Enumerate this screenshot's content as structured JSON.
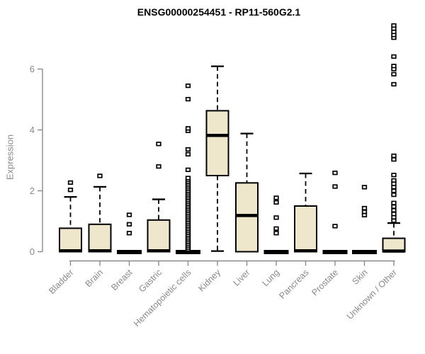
{
  "chart_data": {
    "type": "boxplot",
    "title": "ENSG00000254451 - RP11-560G2.1",
    "ylabel": "Expression",
    "xlabel": "",
    "yticks": [
      0,
      2,
      4,
      6
    ],
    "y_axis_line_range": [
      0,
      6
    ],
    "ylim": [
      0,
      7.6
    ],
    "grid": false,
    "legend": "none",
    "axis_color": "#8a8a8a",
    "box_fill": "#EFE7CC",
    "box_stroke": "#000000",
    "background": "#ffffff",
    "categories": [
      "Bladder",
      "Brain",
      "Breast",
      "Gastric",
      "Hematopoietic cells",
      "Kidney",
      "Liver",
      "Lung",
      "Pancreas",
      "Prostate",
      "Skin",
      "Unknown / Other"
    ],
    "boxes": [
      {
        "category": "Bladder",
        "q1": 0,
        "median": 0.03,
        "q3": 0.77,
        "whisker_low": 0,
        "whisker_high": 1.8,
        "outliers": [
          2.03,
          2.27
        ]
      },
      {
        "category": "Brain",
        "q1": 0,
        "median": 0.03,
        "q3": 0.9,
        "whisker_low": 0,
        "whisker_high": 2.13,
        "outliers": [
          2.49
        ]
      },
      {
        "category": "Breast",
        "q1": 0,
        "median": 0,
        "q3": 0,
        "whisker_low": 0,
        "whisker_high": 0,
        "outliers": [
          0.61,
          0.9,
          1.21
        ]
      },
      {
        "category": "Gastric",
        "q1": 0,
        "median": 0.03,
        "q3": 1.04,
        "whisker_low": 0,
        "whisker_high": 1.72,
        "outliers": [
          2.8,
          3.54
        ]
      },
      {
        "category": "Hematopoietic cells",
        "q1": 0,
        "median": 0,
        "q3": 0,
        "whisker_low": 0,
        "whisker_high": 0,
        "outliers": [
          0.08,
          0.14,
          0.2,
          0.26,
          0.32,
          0.38,
          0.44,
          0.5,
          0.56,
          0.62,
          0.68,
          0.74,
          0.8,
          0.86,
          0.92,
          0.98,
          1.04,
          1.1,
          1.16,
          1.22,
          1.28,
          1.34,
          1.4,
          1.46,
          1.52,
          1.58,
          1.64,
          1.7,
          1.76,
          1.82,
          1.88,
          1.94,
          2.0,
          2.06,
          2.12,
          2.18,
          2.24,
          2.3,
          2.36,
          2.42,
          2.69,
          3.2,
          3.36,
          3.97,
          4.05,
          5.01,
          5.45
        ]
      },
      {
        "category": "Kidney",
        "q1": 2.5,
        "median": 3.82,
        "q3": 4.63,
        "whisker_low": 0.02,
        "whisker_high": 6.09,
        "outliers": []
      },
      {
        "category": "Liver",
        "q1": 0,
        "median": 1.19,
        "q3": 2.26,
        "whisker_low": 0,
        "whisker_high": 3.88,
        "outliers": []
      },
      {
        "category": "Lung",
        "q1": 0,
        "median": 0,
        "q3": 0,
        "whisker_low": 0,
        "whisker_high": 0,
        "outliers": [
          0.61,
          0.76,
          1.12,
          1.62,
          1.77
        ]
      },
      {
        "category": "Pancreas",
        "q1": 0,
        "median": 0.03,
        "q3": 1.5,
        "whisker_low": 0,
        "whisker_high": 2.57,
        "outliers": []
      },
      {
        "category": "Prostate",
        "q1": 0,
        "median": 0,
        "q3": 0,
        "whisker_low": 0,
        "whisker_high": 0,
        "outliers": [
          0.84,
          2.14,
          2.59
        ]
      },
      {
        "category": "Skin",
        "q1": 0,
        "median": 0,
        "q3": 0,
        "whisker_low": 0,
        "whisker_high": 0,
        "outliers": [
          1.2,
          1.31,
          1.43,
          2.12
        ]
      },
      {
        "category": "Unknown / Other",
        "q1": 0,
        "median": 0.02,
        "q3": 0.44,
        "whisker_low": 0,
        "whisker_high": 0.94,
        "outliers": [
          1.02,
          1.13,
          1.24,
          1.36,
          1.48,
          1.6,
          1.87,
          2.0,
          2.12,
          2.23,
          2.34,
          2.52,
          3.03,
          3.15,
          5.5,
          5.83,
          6.0,
          6.1,
          6.41,
          7.03,
          7.12,
          7.22,
          7.33,
          7.43
        ]
      }
    ]
  }
}
